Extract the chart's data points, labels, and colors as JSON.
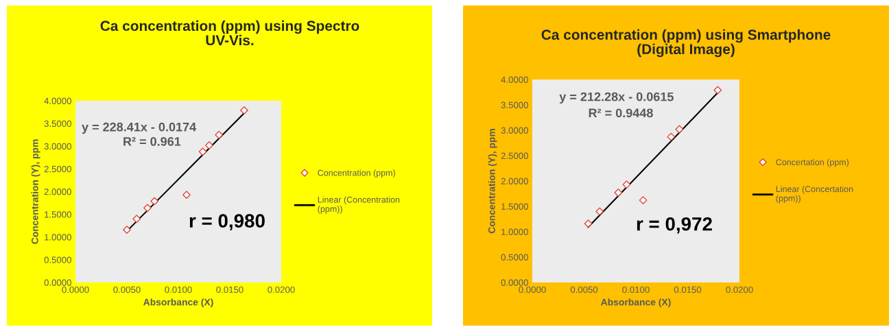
{
  "chart_data": [
    {
      "type": "scatter",
      "title": "Ca concentration (ppm) using Spectro UV-Vis.",
      "xlabel": "Absorbance (X)",
      "ylabel": "Concentration (Y), ppm",
      "series": [
        {
          "name": "Concentration (ppm)",
          "color": "#e0463c",
          "marker": "diamond",
          "x": [
            0.005,
            0.00595,
            0.007,
            0.00768,
            0.0108,
            0.01237,
            0.013,
            0.01395,
            0.0164
          ],
          "values": [
            1.16,
            1.4,
            1.64,
            1.79,
            1.93,
            2.88,
            3.02,
            3.25,
            3.79
          ]
        },
        {
          "name": "Linear (Concentration (ppm))",
          "type": "line",
          "color": "#000000",
          "marker": "none",
          "line_style": "solid",
          "x": [
            0.005,
            0.0164
          ],
          "values": [
            1.13,
            3.73
          ]
        }
      ],
      "xlim": [
        0,
        0.02
      ],
      "xticks": [
        {
          "value": 0,
          "label": "0.0000"
        },
        {
          "value": 0.005,
          "label": "0.0050"
        },
        {
          "value": 0.01,
          "label": "0.0100"
        },
        {
          "value": 0.015,
          "label": "0.0150"
        },
        {
          "value": 0.02,
          "label": "0.0200"
        }
      ],
      "ylim": [
        0,
        4
      ],
      "yticks": [
        {
          "value": 0,
          "label": "0.0000"
        },
        {
          "value": 0.5,
          "label": "0.5000"
        },
        {
          "value": 1,
          "label": "1.0000"
        },
        {
          "value": 1.5,
          "label": "1.5000"
        },
        {
          "value": 2,
          "label": "2.0000"
        },
        {
          "value": 2.5,
          "label": "2.5000"
        },
        {
          "value": 3,
          "label": "3.0000"
        },
        {
          "value": 3.5,
          "label": "3.5000"
        },
        {
          "value": 4,
          "label": "4.0000"
        }
      ],
      "annotations": [
        "y = 228.41x - 0.0174",
        "R² = 0.961",
        "r = 0,980"
      ],
      "grid": false,
      "legend": "right"
    },
    {
      "type": "scatter",
      "title": "Ca concentration (ppm) using Smartphone (Digital Image)",
      "xlabel": "Absorbance (X)",
      "ylabel": "Concentration (Y), ppm",
      "series": [
        {
          "name": "Concertation (ppm)",
          "color": "#e0463c",
          "marker": "diamond",
          "x": [
            0.0054,
            0.0065,
            0.0083,
            0.0091,
            0.0107,
            0.0134,
            0.0142,
            0.0179
          ],
          "values": [
            1.16,
            1.4,
            1.77,
            1.93,
            1.62,
            2.87,
            3.02,
            3.79
          ]
        },
        {
          "name": "Linear (Concertation (ppm))",
          "type": "line",
          "color": "#000000",
          "marker": "none",
          "line_style": "solid",
          "x": [
            0.0054,
            0.0179
          ],
          "values": [
            1.09,
            3.74
          ]
        }
      ],
      "xlim": [
        0,
        0.02
      ],
      "xticks": [
        {
          "value": 0,
          "label": "0.0000"
        },
        {
          "value": 0.005,
          "label": "0.0050"
        },
        {
          "value": 0.01,
          "label": "0.0100"
        },
        {
          "value": 0.015,
          "label": "0.0150"
        },
        {
          "value": 0.02,
          "label": "0.0200"
        }
      ],
      "ylim": [
        0,
        4
      ],
      "yticks": [
        {
          "value": 0,
          "label": "0.0000"
        },
        {
          "value": 0.5,
          "label": "0.5000"
        },
        {
          "value": 1,
          "label": "1.0000"
        },
        {
          "value": 1.5,
          "label": "1.5000"
        },
        {
          "value": 2,
          "label": "2.0000"
        },
        {
          "value": 2.5,
          "label": "2.5000"
        },
        {
          "value": 3,
          "label": "3.0000"
        },
        {
          "value": 3.5,
          "label": "3.5000"
        },
        {
          "value": 4,
          "label": "4.0000"
        }
      ],
      "annotations": [
        "y = 212.28x - 0.0615",
        "R² = 0.9448",
        "r = 0,972"
      ],
      "grid": false,
      "legend": "right"
    }
  ]
}
